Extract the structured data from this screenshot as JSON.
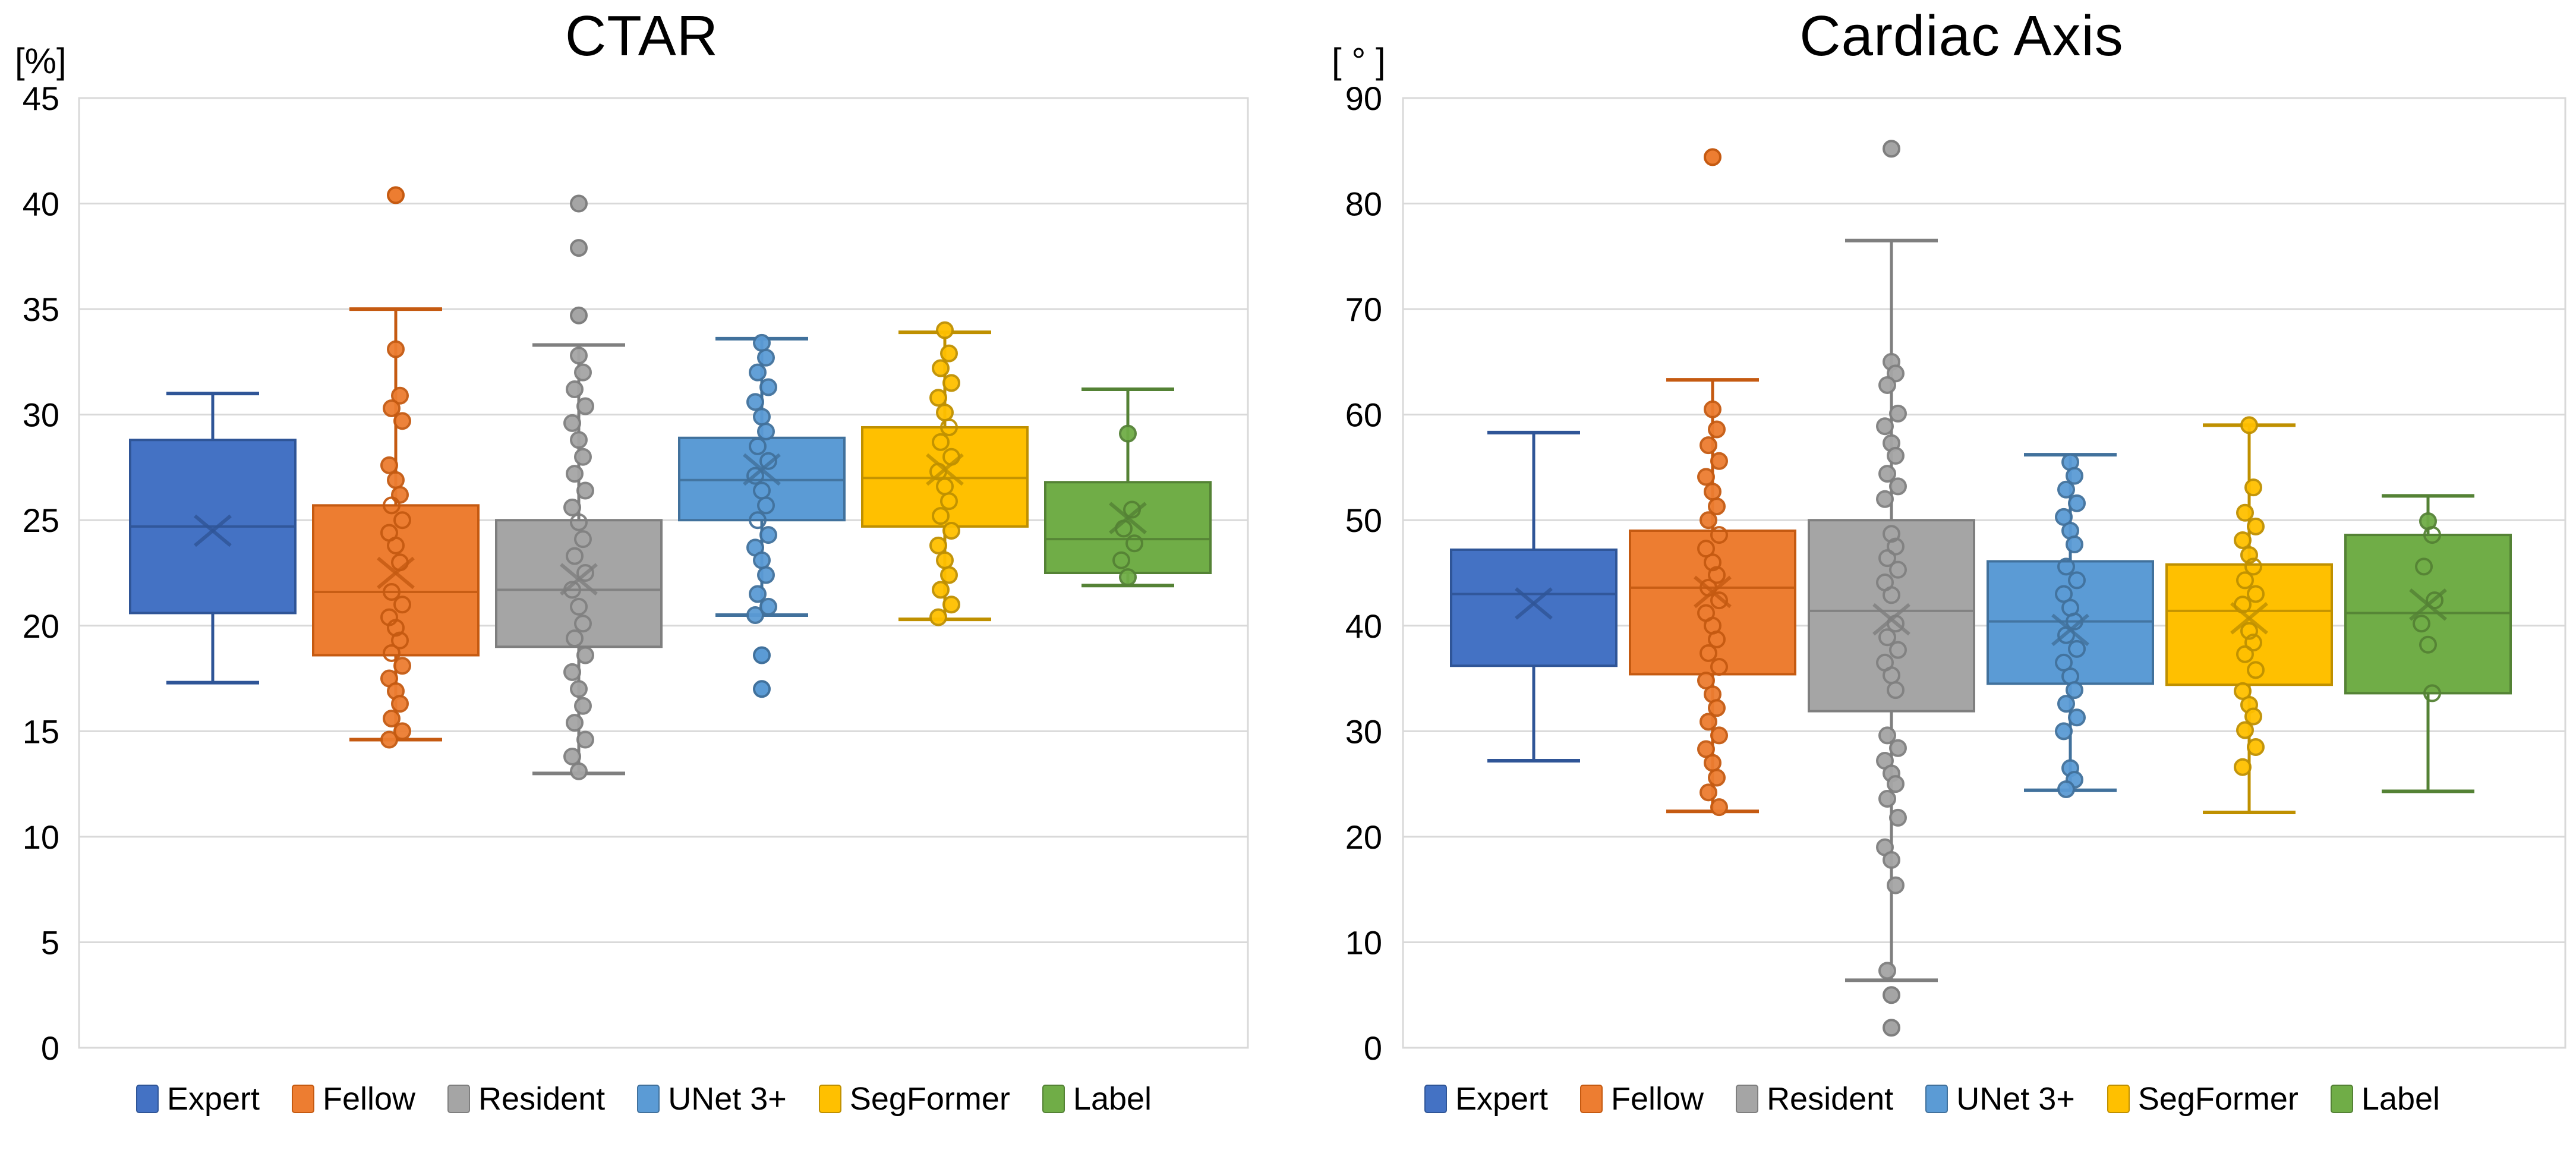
{
  "figure": {
    "background": "#FFFFFF",
    "gridline_color": "#D9D9D9",
    "axis_line_color": "#BFBFBF"
  },
  "chart_data": [
    {
      "type": "box",
      "title": "CTAR",
      "unit_label": "[%]",
      "ylim": [
        0,
        45
      ],
      "ytick_step": 5,
      "yticks": [
        0,
        5,
        10,
        15,
        20,
        25,
        30,
        35,
        40,
        45
      ],
      "grid": true,
      "legend_position": "bottom",
      "series": [
        {
          "name": "Expert",
          "color": "#4472C4",
          "border": "#2F5597",
          "low": 17.3,
          "q1": 20.6,
          "median": 24.7,
          "mean": 24.5,
          "q3": 28.8,
          "high": 31.0,
          "outliers": [],
          "points": []
        },
        {
          "name": "Fellow",
          "color": "#ED7D31",
          "border": "#C55A11",
          "low": 14.6,
          "q1": 18.6,
          "median": 21.6,
          "mean": 22.5,
          "q3": 25.7,
          "high": 35.0,
          "outliers": [
            40.4
          ],
          "points": [
            33.1,
            30.9,
            30.3,
            29.7,
            27.6,
            26.9,
            26.2,
            25.7,
            25.0,
            24.4,
            23.8,
            23.0,
            21.6,
            21.0,
            20.4,
            19.9,
            19.3,
            18.7,
            18.1,
            17.5,
            16.9,
            16.3,
            15.6,
            15.0,
            14.6
          ]
        },
        {
          "name": "Resident",
          "color": "#A5A5A5",
          "border": "#7F7F7F",
          "low": 13.0,
          "q1": 19.0,
          "median": 21.7,
          "mean": 22.2,
          "q3": 25.0,
          "high": 33.3,
          "outliers": [
            40.0,
            37.9,
            34.7
          ],
          "points": [
            32.8,
            32.0,
            31.2,
            30.4,
            29.6,
            28.8,
            28.0,
            27.2,
            26.4,
            25.6,
            24.9,
            24.1,
            23.3,
            22.5,
            21.7,
            20.9,
            20.1,
            19.4,
            18.6,
            17.8,
            17.0,
            16.2,
            15.4,
            14.6,
            13.8,
            13.1
          ]
        },
        {
          "name": "UNet 3+",
          "color": "#5B9BD5",
          "border": "#41719C",
          "low": 20.5,
          "q1": 25.0,
          "median": 26.9,
          "mean": 27.4,
          "q3": 28.9,
          "high": 33.6,
          "outliers": [
            18.6,
            17.0
          ],
          "points": [
            33.4,
            32.7,
            32.0,
            31.3,
            30.6,
            29.9,
            29.2,
            28.5,
            27.8,
            27.1,
            26.4,
            25.7,
            25.0,
            24.3,
            23.7,
            23.1,
            22.4,
            21.5,
            20.9,
            20.5
          ]
        },
        {
          "name": "SegFormer",
          "color": "#FFC000",
          "border": "#BF9000",
          "low": 20.3,
          "q1": 24.7,
          "median": 27.0,
          "mean": 27.4,
          "q3": 29.4,
          "high": 33.9,
          "outliers": [],
          "points": [
            34.0,
            32.9,
            32.2,
            31.5,
            30.8,
            30.1,
            29.4,
            28.7,
            28.0,
            27.3,
            26.6,
            25.9,
            25.2,
            24.5,
            23.8,
            23.1,
            22.4,
            21.7,
            21.0,
            20.4
          ]
        },
        {
          "name": "Label",
          "color": "#70AD47",
          "border": "#548235",
          "low": 21.9,
          "q1": 22.5,
          "median": 24.1,
          "mean": 25.1,
          "q3": 26.8,
          "high": 31.2,
          "outliers": [],
          "points": [
            29.1,
            25.5,
            24.6,
            23.9,
            23.1,
            22.3
          ]
        }
      ]
    },
    {
      "type": "box",
      "title": "Cardiac Axis",
      "unit_label": "[ ° ]",
      "ylim": [
        0,
        90
      ],
      "ytick_step": 10,
      "yticks": [
        0,
        10,
        20,
        30,
        40,
        50,
        60,
        70,
        80,
        90
      ],
      "grid": true,
      "legend_position": "bottom",
      "series": [
        {
          "name": "Expert",
          "color": "#4472C4",
          "border": "#2F5597",
          "low": 27.2,
          "q1": 36.2,
          "median": 43.0,
          "mean": 42.1,
          "q3": 47.2,
          "high": 58.3,
          "outliers": [],
          "points": []
        },
        {
          "name": "Fellow",
          "color": "#ED7D31",
          "border": "#C55A11",
          "low": 22.4,
          "q1": 35.4,
          "median": 43.6,
          "mean": 43.2,
          "q3": 49.0,
          "high": 63.3,
          "outliers": [
            84.4
          ],
          "points": [
            60.5,
            58.6,
            57.1,
            55.6,
            54.1,
            52.7,
            51.3,
            50.0,
            48.6,
            47.3,
            46.0,
            44.8,
            43.6,
            42.4,
            41.2,
            40.0,
            38.7,
            37.4,
            36.1,
            34.8,
            33.5,
            32.2,
            30.9,
            29.6,
            28.3,
            27.0,
            25.6,
            24.2,
            22.8
          ]
        },
        {
          "name": "Resident",
          "color": "#A5A5A5",
          "border": "#7F7F7F",
          "low": 6.4,
          "q1": 31.9,
          "median": 41.4,
          "mean": 40.6,
          "q3": 50.0,
          "high": 76.5,
          "outliers": [
            85.2,
            5.0,
            1.9
          ],
          "points": [
            65.0,
            63.9,
            62.8,
            60.1,
            58.9,
            57.3,
            56.1,
            54.4,
            53.2,
            52.0,
            48.7,
            47.5,
            46.4,
            45.3,
            44.1,
            42.9,
            40.2,
            38.9,
            37.7,
            36.5,
            35.3,
            33.9,
            29.6,
            28.4,
            27.2,
            26.0,
            25.0,
            23.6,
            21.8,
            19.0,
            17.8,
            15.4,
            7.3
          ]
        },
        {
          "name": "UNet 3+",
          "color": "#5B9BD5",
          "border": "#41719C",
          "low": 24.4,
          "q1": 34.5,
          "median": 40.4,
          "mean": 39.6,
          "q3": 46.1,
          "high": 56.2,
          "outliers": [],
          "points": [
            55.5,
            54.2,
            52.9,
            51.6,
            50.3,
            49.0,
            47.7,
            45.6,
            44.3,
            43.0,
            41.7,
            40.4,
            39.1,
            37.8,
            36.5,
            35.2,
            33.9,
            32.6,
            31.3,
            30.0,
            26.5,
            25.4,
            24.5
          ]
        },
        {
          "name": "SegFormer",
          "color": "#FFC000",
          "border": "#BF9000",
          "low": 22.3,
          "q1": 34.4,
          "median": 41.4,
          "mean": 40.7,
          "q3": 45.8,
          "high": 59.0,
          "outliers": [],
          "points": [
            59.0,
            53.1,
            50.7,
            49.4,
            48.1,
            46.7,
            45.6,
            44.3,
            43.0,
            42.0,
            39.5,
            38.4,
            37.3,
            35.8,
            33.8,
            32.5,
            31.4,
            30.1,
            28.5,
            26.6
          ]
        },
        {
          "name": "Label",
          "color": "#70AD47",
          "border": "#548235",
          "low": 24.3,
          "q1": 33.6,
          "median": 41.2,
          "mean": 42.0,
          "q3": 48.6,
          "high": 52.3,
          "outliers": [],
          "points": [
            49.9,
            48.6,
            45.6,
            42.4,
            40.2,
            38.2,
            33.6
          ]
        }
      ]
    }
  ]
}
